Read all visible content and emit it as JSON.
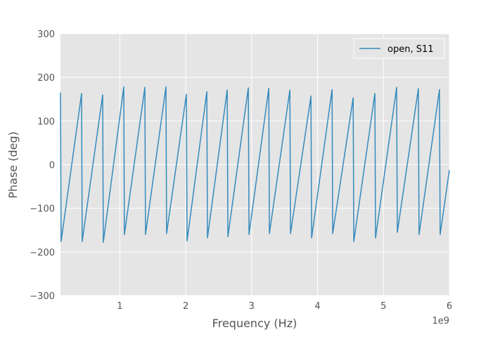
{
  "chart_data": {
    "type": "line",
    "title": "",
    "xlabel": "Frequency (Hz)",
    "ylabel": "Phase (deg)",
    "x_offset_label": "1e9",
    "xlim": [
      0.1,
      6
    ],
    "ylim": [
      -300,
      300
    ],
    "x_ticks": [
      1,
      2,
      3,
      4,
      5,
      6
    ],
    "y_ticks": [
      -300,
      -200,
      -100,
      0,
      100,
      200,
      300
    ],
    "grid": true,
    "legend": {
      "position": "top-right"
    },
    "colors": {
      "series": "#348abd",
      "plot_background": "#e5e5e5",
      "grid": "#ffffff"
    },
    "series": [
      {
        "name": "open, S11",
        "x": [
          0.1,
          0.11,
          0.42,
          0.43,
          0.74,
          0.75,
          1.06,
          1.07,
          1.38,
          1.39,
          1.7,
          1.71,
          2.01,
          2.02,
          2.32,
          2.33,
          2.63,
          2.64,
          2.95,
          2.96,
          3.26,
          3.27,
          3.58,
          3.59,
          3.9,
          3.91,
          4.22,
          4.23,
          4.54,
          4.55,
          4.87,
          4.88,
          5.2,
          5.21,
          5.53,
          5.54,
          5.85,
          5.86,
          6.0
        ],
        "y": [
          165,
          -176,
          163,
          -176,
          160,
          -178,
          178,
          -160,
          177,
          -160,
          178,
          -158,
          161,
          -175,
          167,
          -168,
          171,
          -165,
          176,
          -160,
          175,
          -158,
          171,
          -158,
          157,
          -168,
          172,
          -158,
          153,
          -176,
          163,
          -168,
          177,
          -155,
          174,
          -160,
          172,
          -160,
          -12
        ]
      }
    ]
  }
}
